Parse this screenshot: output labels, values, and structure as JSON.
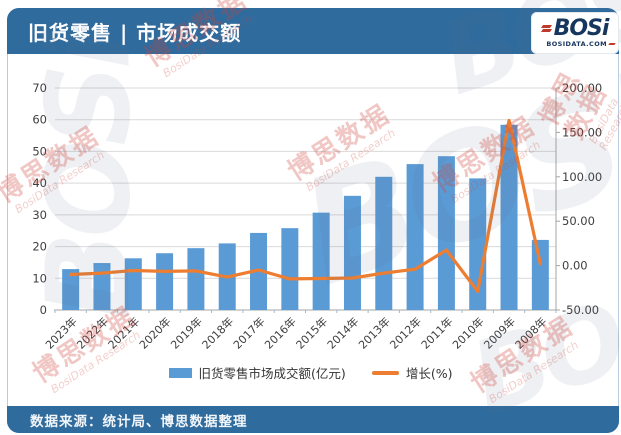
{
  "header": {
    "title": "旧货零售 | 市场成交额"
  },
  "logo": {
    "wordmark": "BOSi",
    "domain": "BOSIDATA.COM"
  },
  "footer": {
    "source": "数据来源：统计局、博思数据整理"
  },
  "watermark": {
    "cn": "博思数据",
    "en": "BosiData Research",
    "logo": "BOSi"
  },
  "colors": {
    "header_blue": "#2f6b9d",
    "bar_blue": "#5b9bd5",
    "line_orange": "#ed7d31",
    "grid_gray": "#d9d9d9",
    "axis_gray": "#a6a6a6",
    "tick_blue": "#9fb8d1",
    "logo_navy": "#17365d",
    "logo_red": "#c0392b"
  },
  "chart_data": {
    "type": "bar",
    "subtype": "bar+line combo, dual axis",
    "categories": [
      "2023年",
      "2022年",
      "2021年",
      "2020年",
      "2019年",
      "2018年",
      "2017年",
      "2016年",
      "2015年",
      "2014年",
      "2013年",
      "2012年",
      "2011年",
      "2010年",
      "2009年",
      "2008年"
    ],
    "series": [
      {
        "name": "旧货零售市场成交额(亿元)",
        "type": "bar",
        "axis": "left",
        "values": [
          12.9,
          14.8,
          16.3,
          17.9,
          19.5,
          21.0,
          24.3,
          25.8,
          30.7,
          36.0,
          42.0,
          46.0,
          48.5,
          41.5,
          58.4,
          22.1
        ]
      },
      {
        "name": "增长(%)",
        "type": "line",
        "axis": "right",
        "values": [
          -10,
          -8.5,
          -5.5,
          -6.5,
          -6,
          -13,
          -5,
          -15,
          -14.5,
          -14,
          -8.5,
          -4,
          17.5,
          -29,
          163.5,
          2
        ]
      }
    ],
    "left_axis": {
      "min": 0,
      "max": 70,
      "step": 10,
      "ticks": [
        0,
        10,
        20,
        30,
        40,
        50,
        60,
        70
      ]
    },
    "right_axis": {
      "min": -50,
      "max": 200,
      "step": 50,
      "ticks": [
        "200.00",
        "150.00",
        "100.00",
        "50.00",
        "0.00",
        "-50.00"
      ]
    },
    "grid": true,
    "legend_position": "bottom",
    "title": "旧货零售 | 市场成交额",
    "xlabel": "",
    "ylabel_left": "亿元",
    "ylabel_right": "%"
  }
}
